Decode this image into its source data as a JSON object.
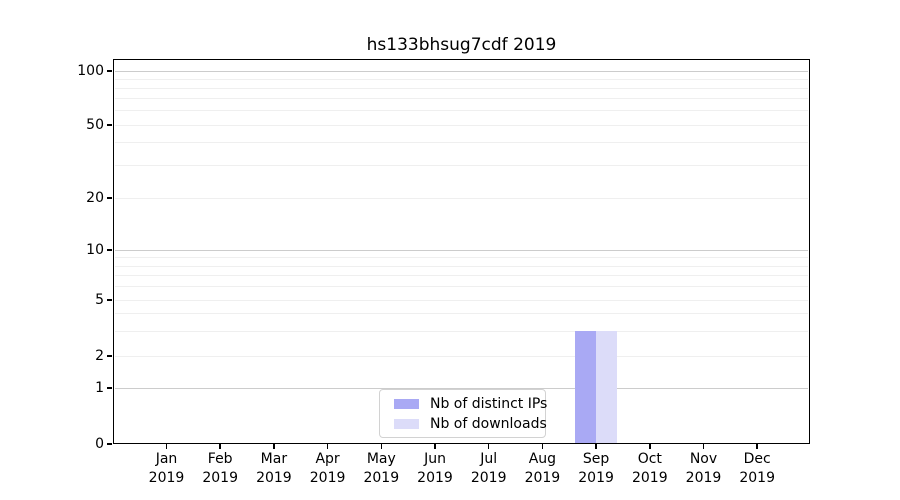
{
  "chart_data": {
    "type": "bar",
    "title": "hs133bhsug7cdf 2019",
    "categories": [
      "Jan 2019",
      "Feb 2019",
      "Mar 2019",
      "Apr 2019",
      "May 2019",
      "Jun 2019",
      "Jul 2019",
      "Aug 2019",
      "Sep 2019",
      "Oct 2019",
      "Nov 2019",
      "Dec 2019"
    ],
    "series": [
      {
        "name": "Nb of distinct IPs",
        "color": "#a9a9f4",
        "values": [
          0,
          0,
          0,
          0,
          0,
          0,
          0,
          0,
          3,
          0,
          0,
          0
        ]
      },
      {
        "name": "Nb of downloads",
        "color": "#dcdcf9",
        "values": [
          0,
          0,
          0,
          0,
          0,
          0,
          0,
          0,
          3,
          0,
          0,
          0
        ]
      }
    ],
    "xlabel": "",
    "ylabel": "",
    "yscale": "symlog",
    "y_ticks": [
      0,
      1,
      2,
      5,
      10,
      20,
      50,
      100
    ],
    "ylim": [
      0,
      110
    ],
    "grid": "horizontal",
    "legend_position": "lower-center-inside",
    "colors": {
      "grid_minor": "#efefef",
      "grid_major": "#cccccc",
      "axis": "#000000",
      "text": "#000000",
      "legend_border": "#d2d2d2",
      "background": "#ffffff"
    }
  }
}
